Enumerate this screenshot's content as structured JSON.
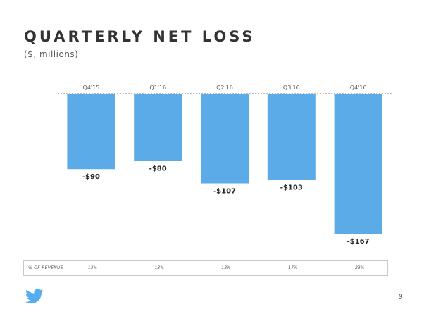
{
  "slide": {
    "page_number": "9",
    "brand_color": "#55acee",
    "logo_icon": "twitter-bird-icon"
  },
  "chart_data": {
    "type": "bar",
    "title": "QUARTERLY NET LOSS",
    "subtitle": "($, millions)",
    "categories": [
      "Q4'15",
      "Q1'16",
      "Q2'16",
      "Q3'16",
      "Q4'16"
    ],
    "values": [
      -90,
      -80,
      -107,
      -103,
      -167
    ],
    "data_labels": [
      "-$90",
      "-$80",
      "-$107",
      "-$103",
      "-$167"
    ],
    "ylim": [
      -167,
      0
    ],
    "bar_color": "#5aabe8",
    "baseline": "dotted",
    "grid": false,
    "legend": "none"
  },
  "revenue_row": {
    "label": "% OF REVENUE",
    "values": [
      "-13%",
      "-13%",
      "-18%",
      "-17%",
      "-23%"
    ]
  }
}
